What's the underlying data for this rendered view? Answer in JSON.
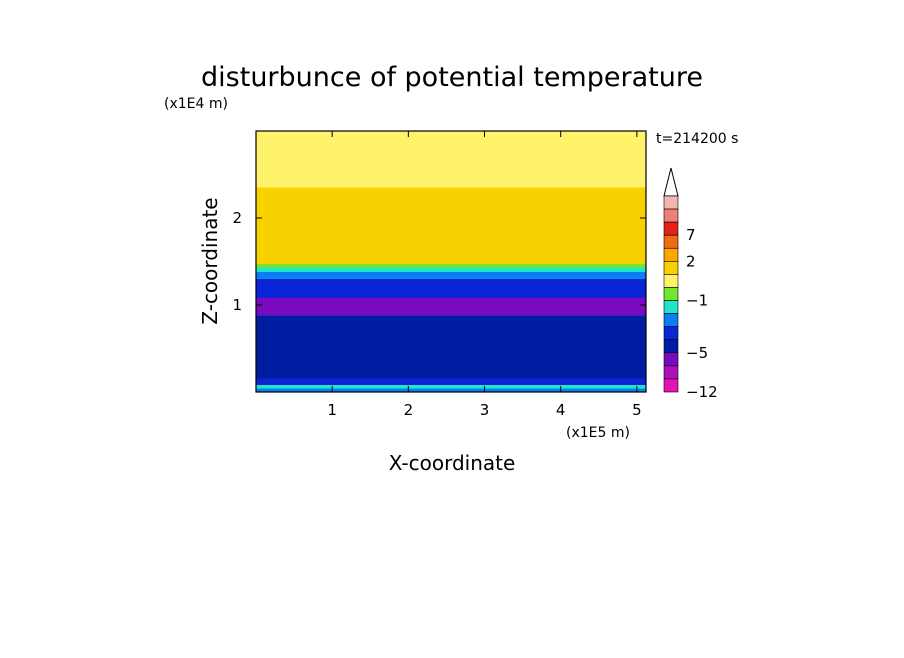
{
  "chart_data": {
    "type": "heatmap",
    "title": "disturbunce of potential temperature",
    "xlabel": "X-coordinate",
    "ylabel": "Z-coordinate",
    "x_unit": "(x1E5 m)",
    "y_unit": "(x1E4 m)",
    "time_label": "t=214200 s",
    "xlim": [
      0,
      5.12
    ],
    "ylim": [
      0,
      3.0
    ],
    "x_ticks": [
      1,
      2,
      3,
      4,
      5
    ],
    "y_ticks": [
      1,
      2
    ],
    "grid": false,
    "colorbar": {
      "position": "right",
      "labels": [
        "7",
        "2",
        "−1",
        "−5",
        "−12"
      ],
      "levels": [
        {
          "label": "",
          "color": "#f2b6b2"
        },
        {
          "label": "",
          "color": "#ee7f78"
        },
        {
          "label": "7",
          "color": "#e42218"
        },
        {
          "label": "",
          "color": "#f06a14"
        },
        {
          "label": "2",
          "color": "#f8a800"
        },
        {
          "label": "",
          "color": "#f8d200"
        },
        {
          "label": "",
          "color": "#fff36b"
        },
        {
          "label": "−1",
          "color": "#72e62a"
        },
        {
          "label": "",
          "color": "#1ee6c8"
        },
        {
          "label": "",
          "color": "#0b7ff0"
        },
        {
          "label": "",
          "color": "#0a24d8"
        },
        {
          "label": "−5",
          "color": "#001ca0"
        },
        {
          "label": "",
          "color": "#7a0ac0"
        },
        {
          "label": "",
          "color": "#b010b8"
        },
        {
          "label": "−12",
          "color": "#e612b4"
        }
      ],
      "extend_top_arrow": true
    },
    "layers": [
      {
        "z_from": 1.35,
        "z_to": 3.0,
        "fill": "#fff36b"
      },
      {
        "z_from": 1.45,
        "z_to": 2.35,
        "fill": "#f8d200"
      },
      {
        "z_from": 1.43,
        "z_to": 1.47,
        "fill": "#72e62a"
      },
      {
        "z_from": 1.38,
        "z_to": 1.43,
        "fill": "#1ee6c8"
      },
      {
        "z_from": 1.3,
        "z_to": 1.38,
        "fill": "#0b7ff0"
      },
      {
        "z_from": 1.08,
        "z_to": 1.3,
        "fill": "#0a24d8"
      },
      {
        "z_from": 0.88,
        "z_to": 1.08,
        "fill": "#7a0ac0"
      },
      {
        "z_from": 0.15,
        "z_to": 0.88,
        "fill": "#001ca0"
      },
      {
        "z_from": 0.08,
        "z_to": 0.15,
        "fill": "#0a24d8"
      },
      {
        "z_from": 0.04,
        "z_to": 0.08,
        "fill": "#1ee6c8"
      },
      {
        "z_from": 0.0,
        "z_to": 0.04,
        "fill": "#0b7ff0"
      }
    ]
  }
}
